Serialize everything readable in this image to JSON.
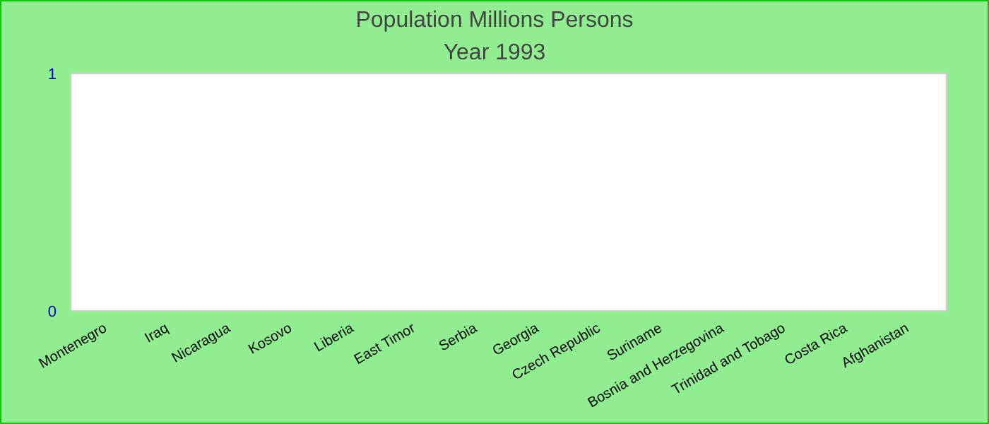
{
  "chart_data": {
    "type": "bar",
    "title": "Population Millions Persons",
    "subtitle": "Year 1993",
    "categories": [
      "Montenegro",
      "Iraq",
      "Nicaragua",
      "Kosovo",
      "Liberia",
      "East Timor",
      "Serbia",
      "Georgia",
      "Czech Republic",
      "Suriname",
      "Bosnia and Herzegovina",
      "Trinidad and Tobago",
      "Costa Rica",
      "Afghanistan"
    ],
    "values": [
      0,
      0,
      0,
      0,
      0,
      0,
      0,
      0,
      0,
      0,
      0,
      0,
      0,
      0
    ],
    "ylim": [
      0,
      1
    ],
    "yticks": [
      0,
      1
    ]
  }
}
